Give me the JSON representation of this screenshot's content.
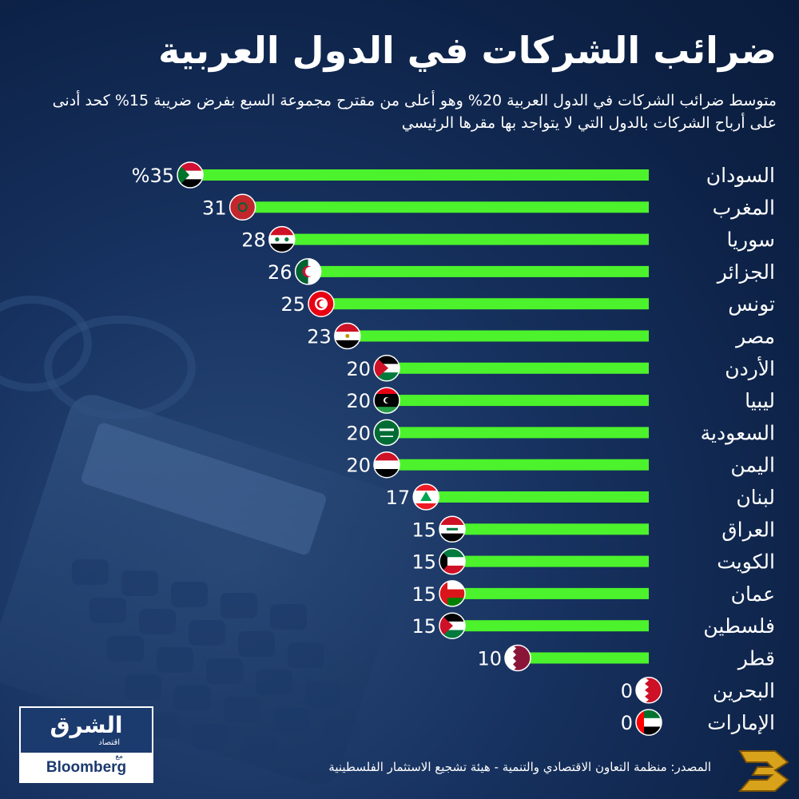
{
  "title": "ضرائب الشركات في الدول العربية",
  "subtitle": "متوسط ضرائب الشركات في الدول العربية 20% وهو أعلى من مقترح مجموعة السبع بفرض ضريبة 15% كحد أدنى على أرباح الشركات بالدول التي لا يتواجد بها مقرها الرئيسي",
  "source": "المصدر: منظمة التعاون الاقتصادي والتنمية - هيئة تشجيع الاستثمار الفلسطينية",
  "logo": {
    "main": "الشرق",
    "sub": "اقتصاد",
    "with": "مع",
    "partner": "Bloomberg"
  },
  "colors": {
    "bar": "#4cf22c",
    "background": "#0f2549",
    "text": "#ffffff"
  },
  "chart_data": {
    "type": "bar",
    "orientation": "horizontal",
    "categories": [
      "السودان",
      "المغرب",
      "سوريا",
      "الجزائر",
      "تونس",
      "مصر",
      "الأردن",
      "ليبيا",
      "السعودية",
      "اليمن",
      "لبنان",
      "العراق",
      "الكويت",
      "عمان",
      "فلسطين",
      "قطر",
      "البحرين",
      "الإمارات"
    ],
    "values": [
      35,
      31,
      28,
      26,
      25,
      23,
      20,
      20,
      20,
      20,
      17,
      15,
      15,
      15,
      15,
      10,
      0,
      0
    ],
    "value_labels": [
      "%35",
      "31",
      "28",
      "26",
      "25",
      "23",
      "20",
      "20",
      "20",
      "20",
      "17",
      "15",
      "15",
      "15",
      "15",
      "10",
      "0",
      "0"
    ],
    "xlim": [
      0,
      35
    ],
    "grid": false,
    "flags": [
      "sudan-flag",
      "morocco-flag",
      "syria-flag",
      "algeria-flag",
      "tunisia-flag",
      "egypt-flag",
      "jordan-flag",
      "libya-flag",
      "saudi-flag",
      "yemen-flag",
      "lebanon-flag",
      "iraq-flag",
      "kuwait-flag",
      "oman-flag",
      "palestine-flag",
      "qatar-flag",
      "bahrain-flag",
      "uae-flag"
    ]
  }
}
